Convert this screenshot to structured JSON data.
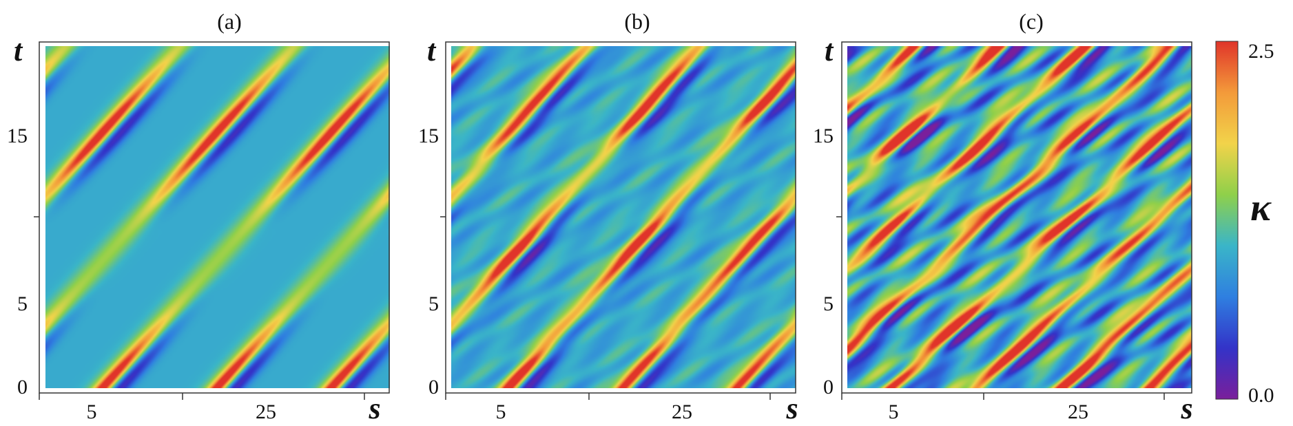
{
  "chart_data": [
    {
      "type": "heatmap",
      "title": "(a)",
      "xlabel": "s",
      "ylabel": "t",
      "x_ticks": [
        5,
        25
      ],
      "y_ticks": [
        0,
        5,
        15
      ],
      "xlim": [
        0,
        36
      ],
      "ylim": [
        0,
        20
      ],
      "pattern": {
        "band_slope": 1.0,
        "band_spacing_s": 12,
        "peak_times": [
          0,
          15
        ],
        "peak_width_t": 2.5,
        "complexity": 0.0
      }
    },
    {
      "type": "heatmap",
      "title": "(b)",
      "xlabel": "s",
      "ylabel": "t",
      "x_ticks": [
        5,
        25
      ],
      "y_ticks": [
        0,
        5,
        15
      ],
      "xlim": [
        0,
        36
      ],
      "ylim": [
        0,
        20
      ],
      "pattern": {
        "band_slope": 1.0,
        "band_spacing_s": 12,
        "peak_times": [
          0,
          8,
          17
        ],
        "peak_width_t": 2.2,
        "complexity": 0.35
      }
    },
    {
      "type": "heatmap",
      "title": "(c)",
      "xlabel": "s",
      "ylabel": "t",
      "x_ticks": [
        5,
        25
      ],
      "y_ticks": [
        0,
        5,
        15
      ],
      "xlim": [
        0,
        36
      ],
      "ylim": [
        0,
        20
      ],
      "pattern": {
        "band_slope": 1.2,
        "band_spacing_s": 9,
        "peak_times": [
          0,
          4,
          10,
          15,
          20
        ],
        "peak_width_t": 1.4,
        "complexity": 1.0
      }
    }
  ],
  "colorbar": {
    "label": "κ",
    "min": 0.0,
    "max": 2.5,
    "min_label": "0.0",
    "max_label": "2.5",
    "colors": [
      "#7a1f9b",
      "#3333c8",
      "#2f7fe0",
      "#3ab5c8",
      "#8fd04a",
      "#f2d34a",
      "#f39a3a",
      "#e0342a"
    ]
  }
}
